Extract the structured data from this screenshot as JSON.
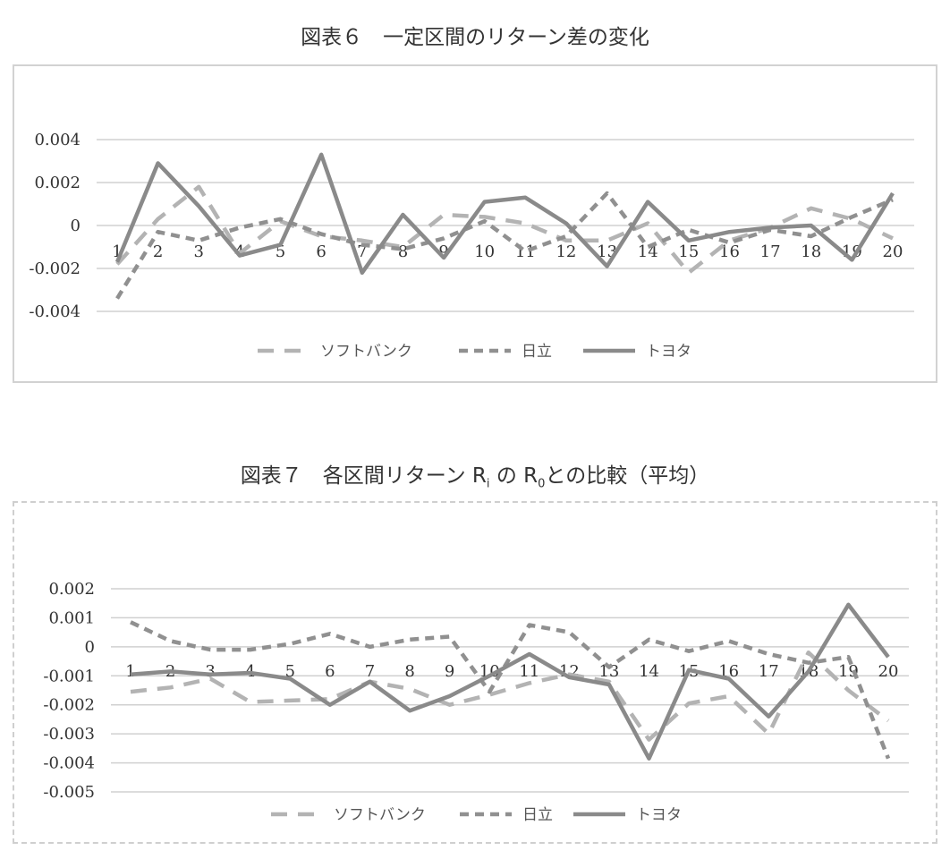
{
  "figures": {
    "fig6_title": "図表６　一定区間のリターン差の変化",
    "fig7_title_main": "図表７　各区間リターン R",
    "fig7_title_sub_i": "i",
    "fig7_title_mid": " の R",
    "fig7_title_sub_0": "0",
    "fig7_title_end": "との比較（平均）"
  },
  "colors": {
    "softbank": "#b3b3b3",
    "hitachi": "#909090",
    "toyota": "#8a8a8a",
    "grid": "#d0d0d0"
  },
  "chart_data": [
    {
      "type": "line",
      "title": "図表６　一定区間のリターン差の変化",
      "categories": [
        "1",
        "2",
        "3",
        "4",
        "5",
        "6",
        "7",
        "8",
        "9",
        "10",
        "11",
        "12",
        "13",
        "14",
        "15",
        "16",
        "17",
        "18",
        "19",
        "20"
      ],
      "ylim": [
        -0.004,
        0.004
      ],
      "yticks": [
        "0.004",
        "0.002",
        "0",
        "-0.002",
        "-0.004"
      ],
      "ytick_values": [
        0.004,
        0.002,
        0,
        -0.002,
        -0.004
      ],
      "grid": true,
      "legend_position": "bottom",
      "series": [
        {
          "name": "ソフトバンク",
          "style": "long-dash",
          "values": [
            -0.0018,
            0.0003,
            0.0018,
            -0.0013,
            0.0002,
            -0.0005,
            -0.0007,
            -0.001,
            0.0005,
            0.0004,
            0.0001,
            -0.0007,
            -0.0007,
            0.0001,
            -0.0022,
            -0.0007,
            -0.0001,
            0.0008,
            0.0003,
            -0.0006
          ]
        },
        {
          "name": "日立",
          "style": "short-dash",
          "values": [
            -0.0034,
            -0.0003,
            -0.0007,
            -0.0001,
            0.0003,
            -0.0004,
            -0.0009,
            -0.0011,
            -0.0006,
            0.0002,
            -0.0012,
            -0.0005,
            0.0015,
            -0.001,
            -0.0002,
            -0.0008,
            -0.0002,
            -0.0005,
            0.0004,
            0.0012
          ]
        },
        {
          "name": "トヨタ",
          "style": "solid",
          "values": [
            -0.0017,
            0.0029,
            0.0009,
            -0.0014,
            -0.0009,
            0.0033,
            -0.0022,
            0.0005,
            -0.0015,
            0.0011,
            0.0013,
            0.0001,
            -0.0019,
            0.0011,
            -0.0007,
            -0.0003,
            -0.0001,
            0.0,
            -0.0016,
            0.0015
          ]
        }
      ]
    },
    {
      "type": "line",
      "title": "図表７　各区間リターン Ri の R0との比較（平均）",
      "categories": [
        "1",
        "2",
        "3",
        "4",
        "5",
        "6",
        "7",
        "8",
        "9",
        "10",
        "11",
        "12",
        "13",
        "14",
        "15",
        "16",
        "17",
        "18",
        "19",
        "20"
      ],
      "ylim": [
        -0.005,
        0.002
      ],
      "yticks": [
        "0.002",
        "0.001",
        "0",
        "-0.001",
        "-0.002",
        "-0.003",
        "-0.004",
        "-0.005"
      ],
      "ytick_values": [
        0.002,
        0.001,
        0,
        -0.001,
        -0.002,
        -0.003,
        -0.004,
        -0.005
      ],
      "grid": true,
      "legend_position": "bottom",
      "series": [
        {
          "name": "ソフトバンク",
          "style": "long-dash",
          "values": [
            -0.00155,
            -0.0014,
            -0.0011,
            -0.0019,
            -0.00185,
            -0.0018,
            -0.0012,
            -0.00145,
            -0.002,
            -0.00165,
            -0.00125,
            -0.00095,
            -0.0012,
            -0.0032,
            -0.00195,
            -0.0017,
            -0.003,
            -0.0002,
            -0.0015,
            -0.00255
          ]
        },
        {
          "name": "日立",
          "style": "short-dash",
          "values": [
            0.00085,
            0.0002,
            -0.0001,
            -0.0001,
            0.0001,
            0.00045,
            0.0,
            0.00025,
            0.00035,
            -0.00155,
            0.00075,
            0.0005,
            -0.0007,
            0.00025,
            -0.00015,
            0.0002,
            -0.00025,
            -0.00055,
            -0.00035,
            -0.00385
          ]
        },
        {
          "name": "トヨタ",
          "style": "solid",
          "values": [
            -0.00095,
            -0.00085,
            -0.00095,
            -0.0009,
            -0.0011,
            -0.002,
            -0.0012,
            -0.0022,
            -0.0017,
            -0.001,
            -0.00025,
            -0.00105,
            -0.0013,
            -0.00385,
            -0.0008,
            -0.0011,
            -0.0024,
            -0.00085,
            0.00145,
            -0.00035
          ]
        }
      ]
    }
  ]
}
